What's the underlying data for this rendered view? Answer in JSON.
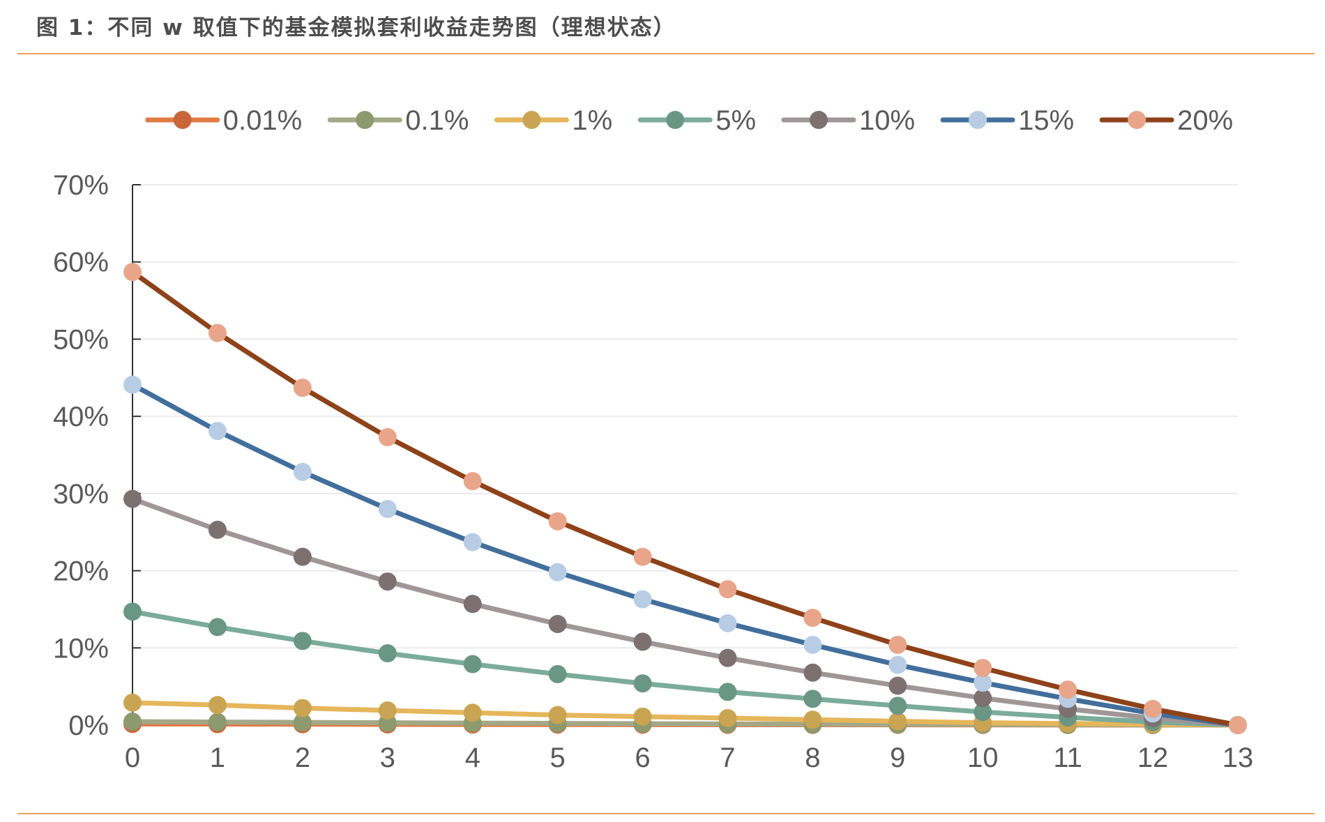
{
  "figure_title": "图 1：不同 w 取值下的基金模拟套利收益走势图（理想状态）",
  "chart_data": {
    "type": "line",
    "title": "图 1：不同 w 取值下的基金模拟套利收益走势图（理想状态）",
    "xlabel": "",
    "ylabel": "",
    "x": [
      0,
      1,
      2,
      3,
      4,
      5,
      6,
      7,
      8,
      9,
      10,
      11,
      12,
      13
    ],
    "x_tick_labels": [
      "0",
      "1",
      "2",
      "3",
      "4",
      "5",
      "6",
      "7",
      "8",
      "9",
      "10",
      "11",
      "12",
      "13"
    ],
    "ylim": [
      0,
      0.7
    ],
    "y_ticks": [
      0,
      0.1,
      0.2,
      0.3,
      0.4,
      0.5,
      0.6,
      0.7
    ],
    "y_tick_labels": [
      "0%",
      "10%",
      "20%",
      "30%",
      "40%",
      "50%",
      "60%",
      "70%"
    ],
    "grid": true,
    "legend_position": "top",
    "series": [
      {
        "name": "0.01%",
        "line_color": "#e07b45",
        "marker_color": "#c9673a",
        "values": [
          0.0015,
          0.0013,
          0.0011,
          0.0009,
          0.0008,
          0.0007,
          0.0006,
          0.0005,
          0.0004,
          0.0003,
          0.0002,
          0.0001,
          5e-05,
          0
        ]
      },
      {
        "name": "0.1%",
        "line_color": "#a3a887",
        "marker_color": "#8c9a6e",
        "values": [
          0.0045,
          0.004,
          0.0035,
          0.003,
          0.0026,
          0.0022,
          0.0018,
          0.0015,
          0.0012,
          0.0009,
          0.0006,
          0.0004,
          0.0002,
          0
        ]
      },
      {
        "name": "1%",
        "line_color": "#e6b65b",
        "marker_color": "#c9a452",
        "values": [
          0.029,
          0.026,
          0.022,
          0.019,
          0.016,
          0.013,
          0.011,
          0.009,
          0.007,
          0.005,
          0.003,
          0.002,
          0.001,
          0
        ]
      },
      {
        "name": "5%",
        "line_color": "#7aab9b",
        "marker_color": "#6a9685",
        "values": [
          0.147,
          0.127,
          0.109,
          0.093,
          0.079,
          0.066,
          0.054,
          0.043,
          0.034,
          0.025,
          0.017,
          0.01,
          0.004,
          0
        ]
      },
      {
        "name": "10%",
        "line_color": "#a09696",
        "marker_color": "#7c7070",
        "values": [
          0.293,
          0.253,
          0.218,
          0.186,
          0.157,
          0.131,
          0.108,
          0.087,
          0.068,
          0.051,
          0.035,
          0.021,
          0.009,
          0
        ]
      },
      {
        "name": "15%",
        "line_color": "#426e9c",
        "marker_color": "#b8cde4",
        "values": [
          0.441,
          0.381,
          0.328,
          0.28,
          0.237,
          0.198,
          0.163,
          0.132,
          0.104,
          0.078,
          0.055,
          0.034,
          0.015,
          0
        ]
      },
      {
        "name": "20%",
        "line_color": "#8e4219",
        "marker_color": "#e8a58a",
        "values": [
          0.587,
          0.508,
          0.437,
          0.373,
          0.316,
          0.264,
          0.218,
          0.176,
          0.139,
          0.104,
          0.074,
          0.046,
          0.021,
          0
        ]
      }
    ]
  }
}
